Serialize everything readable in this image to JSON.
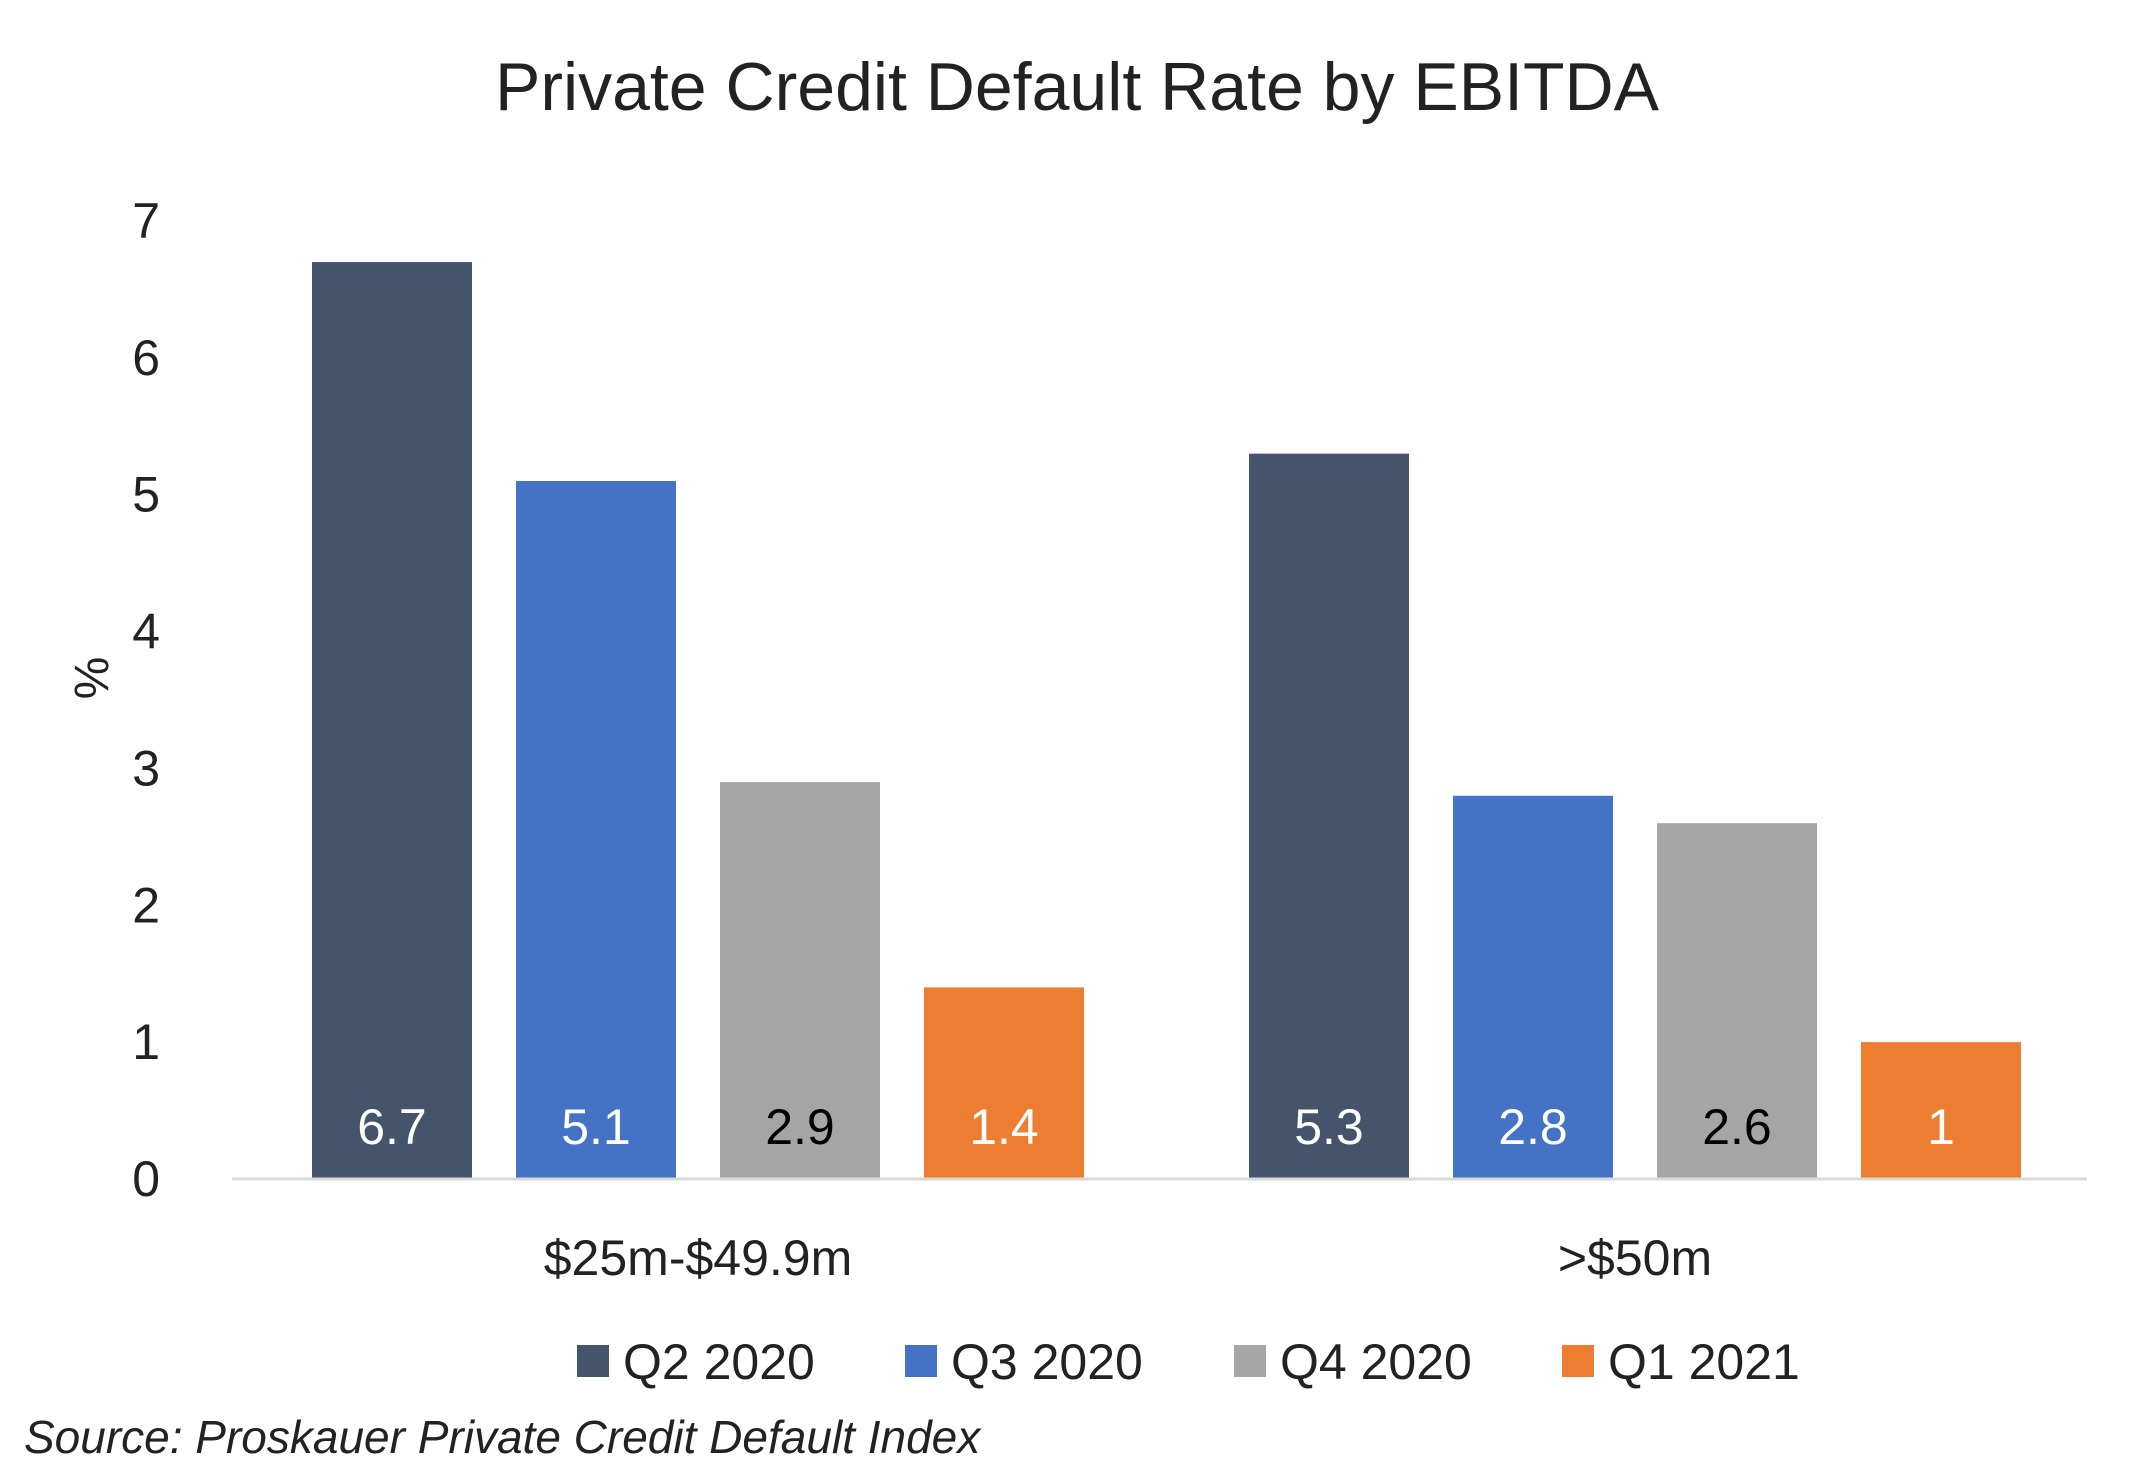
{
  "chart_data": {
    "type": "bar",
    "title": "Private Credit Default Rate by EBITDA",
    "xlabel": "",
    "ylabel": "%",
    "ylim": [
      0,
      7
    ],
    "yticks": [
      0,
      1,
      2,
      3,
      4,
      5,
      6,
      7
    ],
    "categories": [
      "$25m-$49.9m",
      ">$50m"
    ],
    "series": [
      {
        "name": "Q2 2020",
        "color": "#44546A",
        "label_color": "#ffffff",
        "values": [
          6.7,
          5.3
        ],
        "labels": [
          "6.7",
          "5.3"
        ]
      },
      {
        "name": "Q3 2020",
        "color": "#4472C4",
        "label_color": "#ffffff",
        "values": [
          5.1,
          2.8
        ],
        "labels": [
          "5.1",
          "2.8"
        ]
      },
      {
        "name": "Q4 2020",
        "color": "#A5A5A5",
        "label_color": "#000000",
        "values": [
          2.9,
          2.6
        ],
        "labels": [
          "2.9",
          "2.6"
        ]
      },
      {
        "name": "Q1 2021",
        "color": "#ED7D31",
        "label_color": "#ffffff",
        "values": [
          1.4,
          1.0
        ],
        "labels": [
          "1.4",
          "1"
        ]
      }
    ],
    "grid": false,
    "legend_position": "bottom"
  },
  "source_note": "Source: Proskauer Private Credit Default Index"
}
